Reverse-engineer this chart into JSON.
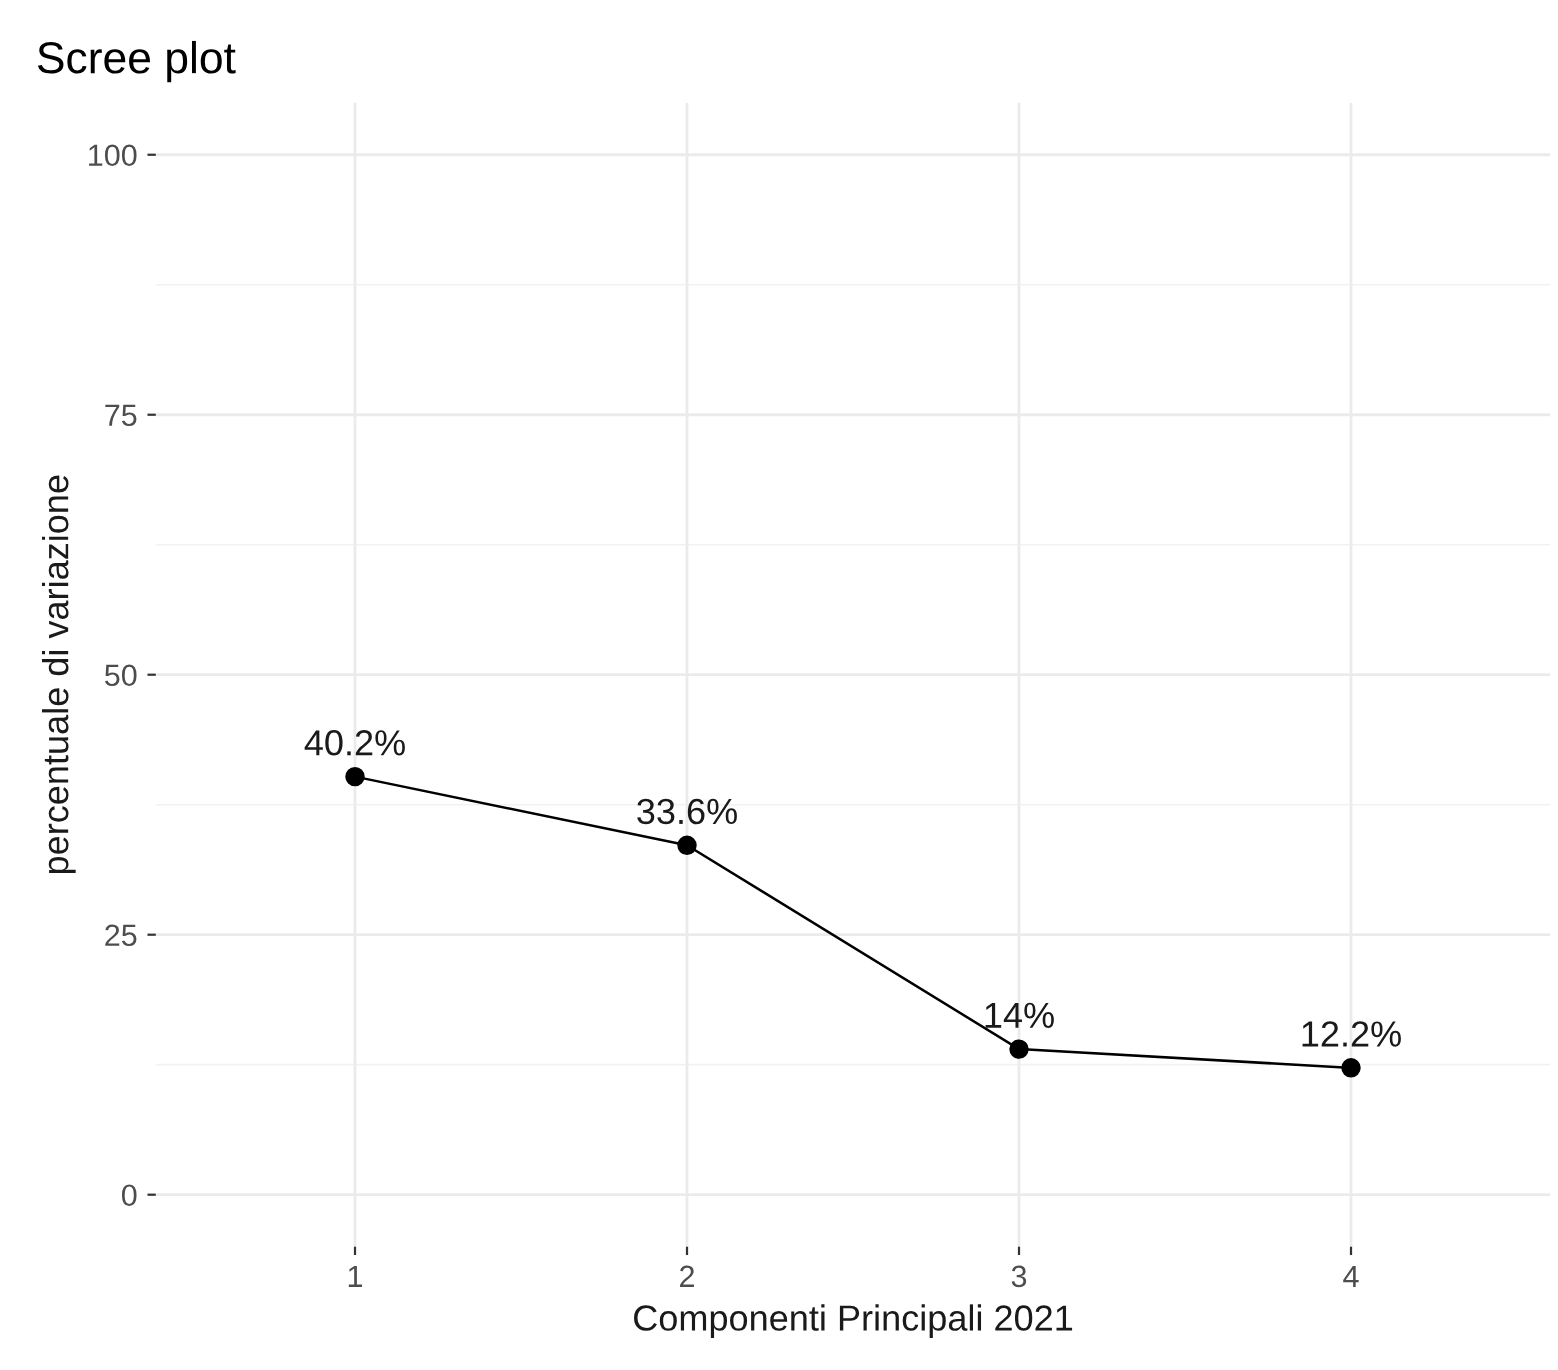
{
  "chart_data": {
    "type": "line",
    "title": "Scree plot",
    "xlabel": "Componenti Principali 2021",
    "ylabel": "percentuale di variazione",
    "categories": [
      "1",
      "2",
      "3",
      "4"
    ],
    "series": [
      {
        "color": "#000000",
        "values": [
          40.2,
          33.6,
          14,
          12.2
        ],
        "value_labels": [
          "40.2%",
          "33.6%",
          "14%",
          "12.2%"
        ]
      }
    ],
    "ylim": [
      -5,
      105
    ],
    "yticks": [
      0,
      25,
      50,
      75,
      100
    ],
    "grid": true,
    "marker": "circle",
    "line_style": "solid"
  }
}
